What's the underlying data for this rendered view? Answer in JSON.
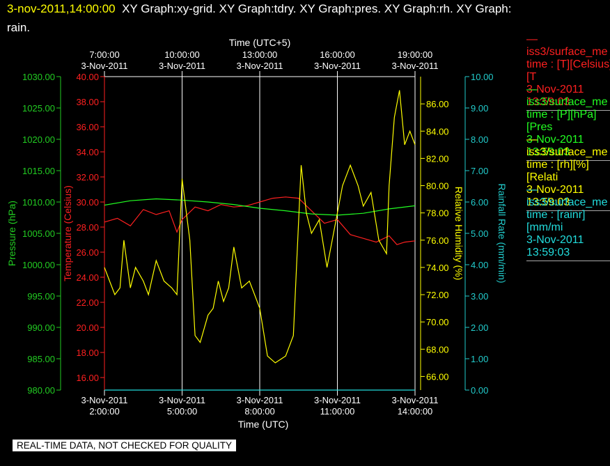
{
  "title": {
    "timestamp": "3-nov-2011,14:00:00",
    "rest_line1": "XY Graph:xy-grid.  XY Graph:tdry.  XY Graph:pres.  XY Graph:rh.  XY Graph:",
    "line2": "rain."
  },
  "legend": [
    {
      "line1": "—iss3/surface_me",
      "line2": "time : [T][Celsius][T",
      "date": "3-Nov-2011",
      "time": "13:59:03",
      "color": "#ff2020"
    },
    {
      "line1": "—iss3/surface_me",
      "line2": "time : [P][hPa][Pres",
      "date": "3-Nov-2011",
      "time": "13:59:03",
      "color": "#22ff22"
    },
    {
      "line1": "—iss3/surface_me",
      "line2": "time : [rh][%][Relati",
      "date": "3-Nov-2011",
      "time": "13:59:03",
      "color": "#ffff00"
    },
    {
      "line1": "—iss3/surface_me",
      "line2": "time : [rainr][mm/mi",
      "date": "3-Nov-2011",
      "time": "13:59:03",
      "color": "#22dddd"
    }
  ],
  "footer": "REAL-TIME DATA, NOT CHECKED FOR QUALITY",
  "chart_data": {
    "type": "line",
    "x_top_label": "Time (UTC+5)",
    "x_bottom_label": "Time (UTC)",
    "x_bottom_ticks": [
      {
        "date": "3-Nov-2011",
        "time": "2:00:00"
      },
      {
        "date": "3-Nov-2011",
        "time": "5:00:00"
      },
      {
        "date": "3-Nov-2011",
        "time": "8:00:00"
      },
      {
        "date": "3-Nov-2011",
        "time": "11:00:00"
      },
      {
        "date": "3-Nov-2011",
        "time": "14:00:00"
      }
    ],
    "x_top_ticks": [
      {
        "time": "7:00:00",
        "date": "3-Nov-2011"
      },
      {
        "time": "10:00:00",
        "date": "3-Nov-2011"
      },
      {
        "time": "13:00:00",
        "date": "3-Nov-2011"
      },
      {
        "time": "16:00:00",
        "date": "3-Nov-2011"
      },
      {
        "time": "19:00:00",
        "date": "3-Nov-2011"
      }
    ],
    "x_range_utc_hours": [
      2,
      14
    ],
    "grid": "vertical lines at each labelled time",
    "axes": {
      "pressure": {
        "label": "Pressure (hPa)",
        "range": [
          980,
          1030
        ],
        "ticks": [
          "980.00",
          "985.00",
          "990.00",
          "995.00",
          "1000.00",
          "1005.00",
          "1010.00",
          "1015.00",
          "1020.00",
          "1025.00",
          "1030.00"
        ],
        "color": "#22cc22"
      },
      "temperature": {
        "label": "Temperature (Celsius)",
        "range": [
          15,
          40
        ],
        "ticks": [
          "16.00",
          "18.00",
          "20.00",
          "22.00",
          "24.00",
          "26.00",
          "28.00",
          "30.00",
          "32.00",
          "34.00",
          "36.00",
          "38.00",
          "40.00"
        ],
        "color": "#ff2020"
      },
      "humidity": {
        "label": "Relative Humidity (%)",
        "range": [
          65,
          88
        ],
        "ticks": [
          "66.00",
          "68.00",
          "70.00",
          "72.00",
          "74.00",
          "76.00",
          "78.00",
          "80.00",
          "82.00",
          "84.00",
          "86.00"
        ],
        "color": "#ffff00"
      },
      "rain": {
        "label": "Rainfall Rate (mm/min)",
        "range": [
          0,
          10
        ],
        "ticks": [
          "0.00",
          "1.00",
          "2.00",
          "3.00",
          "4.00",
          "5.00",
          "6.00",
          "7.00",
          "8.00",
          "9.00",
          "10.00"
        ],
        "color": "#22cccc"
      }
    },
    "series": [
      {
        "axis": "temperature",
        "color": "#ff2020",
        "x": [
          2.0,
          2.5,
          3.0,
          3.5,
          4.0,
          4.5,
          4.8,
          5.0,
          5.5,
          6.0,
          6.5,
          7.0,
          7.5,
          8.0,
          8.5,
          9.0,
          9.5,
          10.0,
          10.5,
          11.0,
          11.5,
          12.0,
          12.5,
          13.0,
          13.3,
          13.6,
          14.0
        ],
        "y": [
          28.4,
          28.7,
          28.1,
          29.4,
          29.0,
          29.3,
          27.6,
          28.6,
          29.6,
          29.3,
          29.8,
          29.6,
          29.7,
          30.0,
          30.3,
          30.4,
          30.3,
          29.3,
          28.3,
          28.6,
          27.4,
          27.1,
          26.8,
          27.3,
          26.6,
          26.8,
          26.9
        ]
      },
      {
        "axis": "pressure",
        "color": "#22ff22",
        "x": [
          2.0,
          3.0,
          4.0,
          5.0,
          6.0,
          7.0,
          8.0,
          9.0,
          10.0,
          11.0,
          12.0,
          13.0,
          14.0
        ],
        "y": [
          1009.5,
          1010.2,
          1010.5,
          1010.3,
          1010.0,
          1009.6,
          1009.0,
          1008.6,
          1008.1,
          1007.9,
          1008.2,
          1008.9,
          1009.4
        ]
      },
      {
        "axis": "humidity",
        "color": "#ffff00",
        "x": [
          2.0,
          2.2,
          2.4,
          2.6,
          2.75,
          3.0,
          3.2,
          3.5,
          3.7,
          4.0,
          4.3,
          4.6,
          4.8,
          5.0,
          5.1,
          5.3,
          5.5,
          5.7,
          6.0,
          6.2,
          6.4,
          6.6,
          6.8,
          7.0,
          7.3,
          7.6,
          7.8,
          8.0,
          8.3,
          8.6,
          9.0,
          9.3,
          9.6,
          9.8,
          10.0,
          10.3,
          10.6,
          10.8,
          11.0,
          11.2,
          11.5,
          11.8,
          12.0,
          12.3,
          12.6,
          12.9,
          13.0,
          13.2,
          13.4,
          13.6,
          13.8,
          14.0
        ],
        "y": [
          74.0,
          73.0,
          72.0,
          72.5,
          76.0,
          72.5,
          74.0,
          73.0,
          72.0,
          74.5,
          73.0,
          72.5,
          72.0,
          80.5,
          79.0,
          76.0,
          69.0,
          68.5,
          70.5,
          71.0,
          73.0,
          71.5,
          72.5,
          75.5,
          72.5,
          73.0,
          72.0,
          71.0,
          67.5,
          67.0,
          67.5,
          69.0,
          81.5,
          78.0,
          76.5,
          77.5,
          74.0,
          76.0,
          78.0,
          80.0,
          81.5,
          80.0,
          78.5,
          79.5,
          76.0,
          75.0,
          80.0,
          85.0,
          87.0,
          83.0,
          84.0,
          83.0
        ]
      },
      {
        "axis": "rain",
        "color": "#22dddd",
        "x": [
          2.0,
          14.0
        ],
        "y": [
          0.0,
          0.0
        ]
      }
    ]
  }
}
